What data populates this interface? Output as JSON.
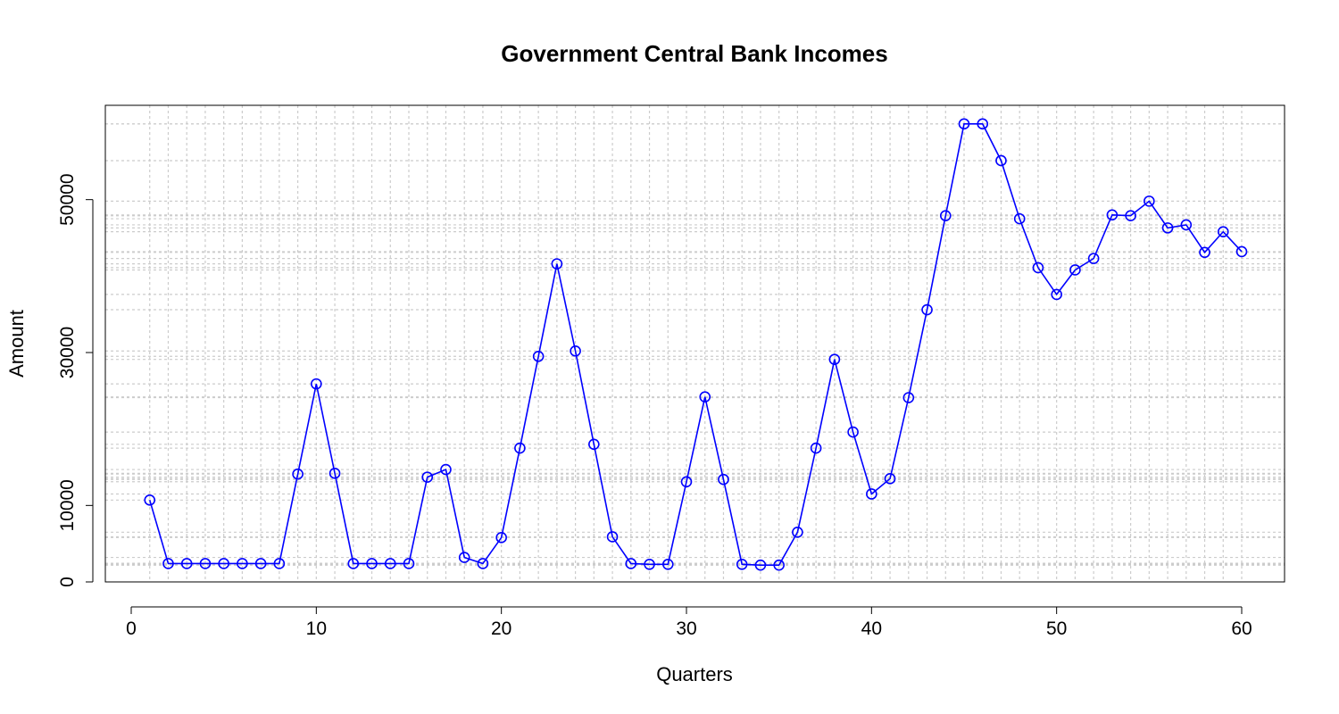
{
  "chart_data": {
    "type": "line",
    "title": "Government Central Bank Incomes",
    "xlabel": "Quarters",
    "ylabel": "Amount",
    "xlim": [
      1,
      60
    ],
    "ylim": [
      0,
      60000
    ],
    "x_ticks": [
      0,
      10,
      20,
      30,
      40,
      50,
      60
    ],
    "y_ticks": [
      0,
      10000,
      30000,
      50000
    ],
    "grid": true,
    "legend": "none",
    "markers": "open-circle",
    "color": "#0000ff",
    "grid_color": "#cccccc",
    "series": [
      {
        "x": [
          1,
          2,
          3,
          4,
          5,
          6,
          7,
          8,
          9,
          10,
          11,
          12,
          13,
          14,
          15,
          16,
          17,
          18,
          19,
          20,
          21,
          22,
          23,
          24,
          25,
          26,
          27,
          28,
          29,
          30,
          31,
          32,
          33,
          34,
          35,
          36,
          37,
          38,
          39,
          40,
          41,
          42,
          43,
          44,
          45,
          46,
          47,
          48,
          49,
          50,
          51,
          52,
          53,
          54,
          55,
          56,
          57,
          58,
          59,
          60
        ],
        "values": [
          10700,
          2400,
          2400,
          2400,
          2400,
          2400,
          2400,
          2400,
          14100,
          25900,
          14200,
          2400,
          2400,
          2400,
          2400,
          13700,
          14700,
          3200,
          2400,
          5800,
          17500,
          29500,
          41600,
          30200,
          18000,
          5900,
          2400,
          2300,
          2300,
          13100,
          24200,
          13400,
          2300,
          2200,
          2200,
          6500,
          17500,
          29100,
          19600,
          11500,
          13500,
          24100,
          35600,
          47900,
          59900,
          59900,
          55100,
          47500,
          41100,
          37600,
          40800,
          42300,
          48000,
          47900,
          49800,
          46300,
          46700,
          43100,
          45800,
          43200
        ]
      }
    ]
  }
}
